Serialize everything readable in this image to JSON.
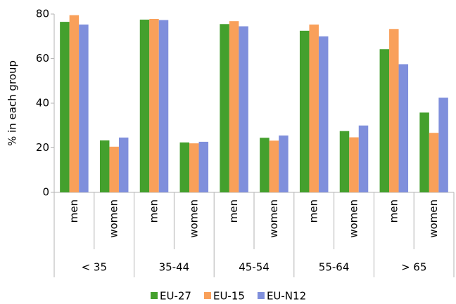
{
  "chart_data": {
    "type": "bar",
    "y_label": "% in each group",
    "categories": [
      "men",
      "women",
      "men",
      "women",
      "men",
      "women",
      "men",
      "women",
      "men",
      "women"
    ],
    "groups": [
      "< 35",
      "35-44",
      "45-54",
      "55-64",
      "> 65"
    ],
    "series": [
      {
        "name": "EU-27",
        "color": "#44a02d",
        "values": [
          76.5,
          23.3,
          77.5,
          22.4,
          75.5,
          24.5,
          72.5,
          27.5,
          64.2,
          35.8
        ]
      },
      {
        "name": "EU-15",
        "color": "#f9a05a",
        "values": [
          79.5,
          20.5,
          77.8,
          22.0,
          76.8,
          23.2,
          75.3,
          24.7,
          73.3,
          26.7
        ]
      },
      {
        "name": "EU-N12",
        "color": "#7f8fdc",
        "values": [
          75.3,
          24.6,
          77.3,
          22.7,
          74.5,
          25.5,
          70.0,
          30.0,
          57.5,
          42.5
        ]
      }
    ],
    "ylim": [
      0,
      80
    ],
    "yticks": [
      0,
      20,
      40,
      60,
      80
    ],
    "grid": false,
    "legend": "bottom"
  }
}
